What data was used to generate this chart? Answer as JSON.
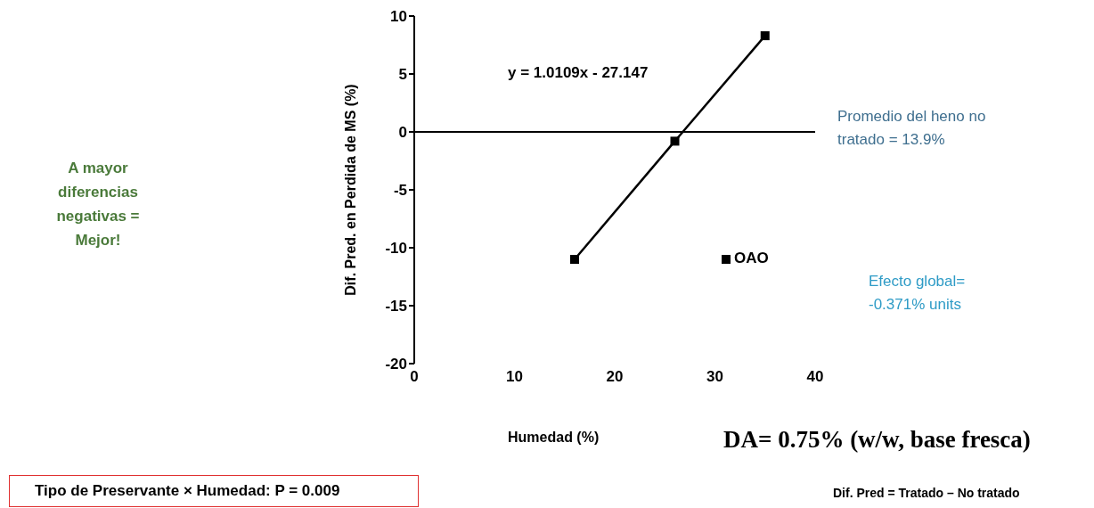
{
  "chart_data": {
    "type": "line",
    "xlabel": "Humedad (%)",
    "ylabel": "Dif. Pred. en  Perdida de MS (%)",
    "x": [
      16,
      26,
      35
    ],
    "series": [
      {
        "name": "OAO",
        "color": "#000000",
        "values": [
          -11,
          -0.8,
          8.3
        ]
      }
    ],
    "xlim": [
      0,
      40
    ],
    "xticks": [
      0,
      10,
      20,
      30,
      40
    ],
    "ylim": [
      -20,
      10
    ],
    "yticks": [
      -20,
      -15,
      -10,
      -5,
      0,
      5,
      10
    ],
    "ref_lines": [
      {
        "axis": "y",
        "value": 0,
        "color": "#000000"
      }
    ],
    "marker": "square",
    "line_style": "solid",
    "legend": "right",
    "annotations": [
      "y = 1.0109x - 27.147",
      "Promedio del heno no tratado = 13.9%",
      "Efecto global= -0.371% units",
      "A mayor diferencias negativas = Mejor!",
      "DA= 0.75% (w/w, base fresca)",
      "Tipo de Preservante × Humedad: P = 0.009",
      "Dif. Pred = Tratado – No tratado"
    ]
  }
}
